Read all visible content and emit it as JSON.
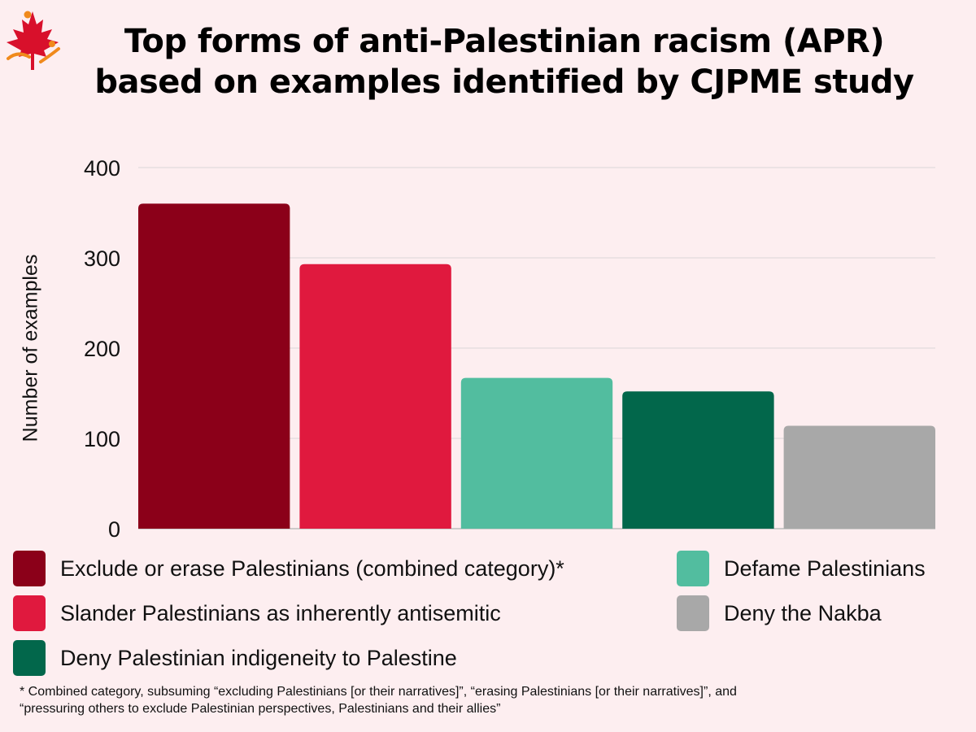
{
  "title_line1": "Top forms of anti-Palestinian racism (APR)",
  "title_line2": "based on examples identified by CJPME study",
  "footnote_line1": "* Combined category, subsuming “excluding Palestinians [or their narratives]”, “erasing Palestinians [or their narratives]”, and",
  "footnote_line2": "“pressuring others to exclude Palestinian perspectives, Palestinians and their allies”",
  "chart_data": {
    "type": "bar",
    "title": "Top forms of anti-Palestinian racism (APR) based on examples identified by CJPME study",
    "xlabel": "",
    "ylabel": "Number of examples",
    "ylim": [
      0,
      400
    ],
    "yticks": [
      0,
      100,
      200,
      300,
      400
    ],
    "grid": true,
    "legend_position": "bottom",
    "categories": [
      "Exclude or erase Palestinians (combined category)*",
      "Slander Palestinians as inherently antisemitic",
      "Defame Palestinians",
      "Deny Palestinian indigeneity to Palestine",
      "Deny the Nakba"
    ],
    "values": [
      360,
      293,
      167,
      152,
      114
    ],
    "colors": [
      "#8b0019",
      "#e0193e",
      "#52bd9f",
      "#02674b",
      "#a8a8a8"
    ]
  },
  "logo": {
    "icon": "maple-leaf-logo-icon",
    "colors": [
      "#d8102b",
      "#f08a1c"
    ]
  }
}
